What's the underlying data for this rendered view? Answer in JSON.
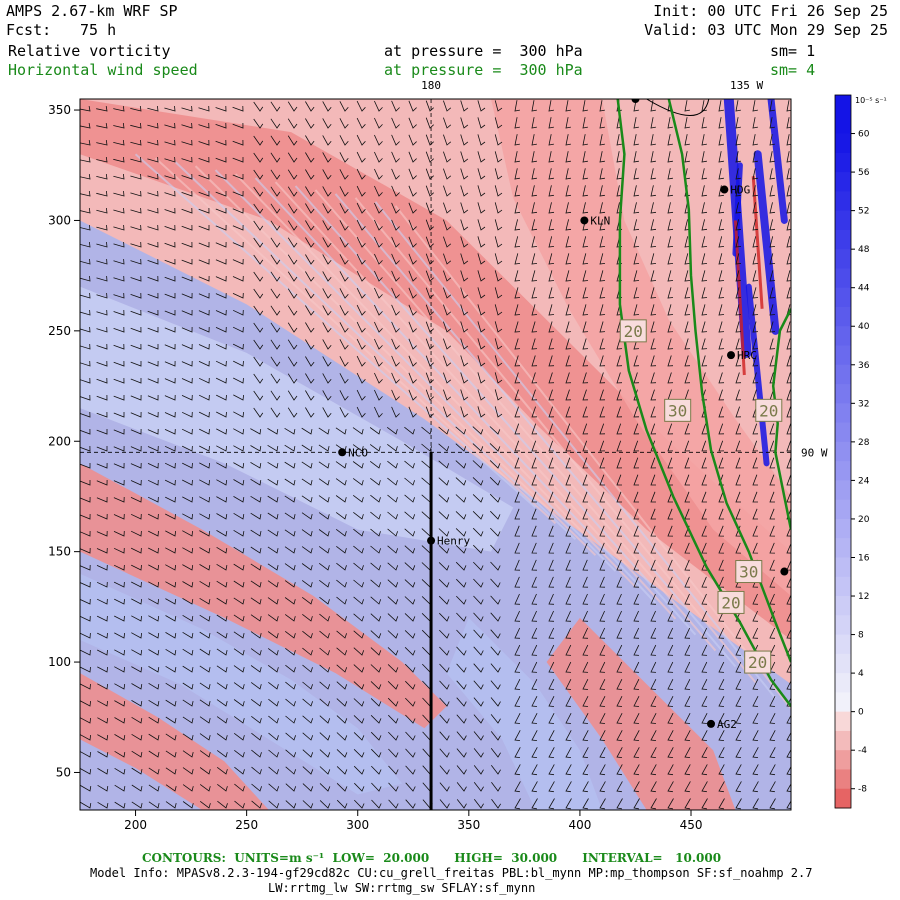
{
  "header": {
    "model": "AMPS 2.67-km WRF SP",
    "fcst_label": "Fcst:",
    "fcst_value": "75 h",
    "init": "Init: 00 UTC Fri 26 Sep 25",
    "valid": "Valid: 03 UTC Mon 29 Sep 25",
    "field1_name": "Relative vorticity",
    "field1_level": "at pressure =  300 hPa",
    "field1_sm": "sm= 1",
    "field2_name": "Horizontal wind speed",
    "field2_level": "at pressure =  300 hPa",
    "field2_sm": "sm= 4"
  },
  "colors": {
    "positive": "#1414e6",
    "negative": "#e65a5a",
    "contour": "#1a8a1a",
    "label_box": "#7a7a4a"
  },
  "chart_data": {
    "type": "heatmap",
    "title": "Relative vorticity / Horizontal wind speed",
    "xlim": [
      175,
      495
    ],
    "ylim": [
      33,
      355
    ],
    "x_ticks": [
      200,
      250,
      300,
      350,
      400,
      450
    ],
    "y_ticks": [
      50,
      100,
      150,
      200,
      250,
      300,
      350
    ],
    "grid": false,
    "colorbar": {
      "unit": "10⁻⁵ s⁻¹",
      "labels": [
        "60",
        "56",
        "52",
        "48",
        "44",
        "40",
        "36",
        "32",
        "28",
        "24",
        "20",
        "16",
        "12",
        "8",
        "4",
        "0",
        "-4",
        "-8"
      ],
      "max": 64,
      "min": -10
    },
    "stations": [
      {
        "name": "NCO",
        "x": 293,
        "y": 195
      },
      {
        "name": "Henry",
        "x": 333,
        "y": 155
      },
      {
        "name": "KLN",
        "x": 402,
        "y": 300
      },
      {
        "name": "HDG",
        "x": 465,
        "y": 314
      },
      {
        "name": "HRC",
        "x": 468,
        "y": 239
      },
      {
        "name": "AG2",
        "x": 459,
        "y": 72
      },
      {
        "name": "",
        "x": 425,
        "y": 355
      },
      {
        "name": "",
        "x": 492,
        "y": 141
      }
    ],
    "meridians": [
      {
        "label": "180",
        "x": 333
      },
      {
        "label": "135 W",
        "x": 475
      }
    ],
    "parallels": [
      {
        "label": "90 W",
        "y": 195
      }
    ],
    "cross_section": {
      "x": 333,
      "y_start": 33,
      "y_end": 195
    },
    "contours": [
      {
        "level": 20,
        "points": [
          [
            417,
            355
          ],
          [
            420,
            330
          ],
          [
            418,
            300
          ],
          [
            418,
            262
          ],
          [
            422,
            232
          ],
          [
            430,
            205
          ],
          [
            442,
            175
          ],
          [
            457,
            143
          ],
          [
            472,
            118
          ],
          [
            486,
            92
          ],
          [
            495,
            80
          ]
        ]
      },
      {
        "level": 30,
        "points": [
          [
            440,
            355
          ],
          [
            446,
            330
          ],
          [
            449,
            305
          ],
          [
            450,
            275
          ],
          [
            452,
            250
          ],
          [
            455,
            222
          ],
          [
            459,
            196
          ],
          [
            466,
            172
          ],
          [
            476,
            150
          ],
          [
            488,
            118
          ],
          [
            495,
            100
          ]
        ]
      },
      {
        "level": 20,
        "points": [
          [
            495,
            260
          ],
          [
            490,
            250
          ],
          [
            487,
            225
          ],
          [
            489,
            208
          ],
          [
            488,
            195
          ],
          [
            492,
            175
          ],
          [
            495,
            160
          ]
        ]
      }
    ],
    "contour_labels": [
      {
        "text": "20",
        "x": 424,
        "y": 250
      },
      {
        "text": "30",
        "x": 444,
        "y": 214
      },
      {
        "text": "20",
        "x": 485,
        "y": 214
      },
      {
        "text": "30",
        "x": 476,
        "y": 141
      },
      {
        "text": "20",
        "x": 468,
        "y": 127
      },
      {
        "text": "20",
        "x": 480,
        "y": 100
      }
    ]
  },
  "footer": {
    "contours_line": "CONTOURS:  UNITS=m s⁻¹  LOW=  20.000      HIGH=  30.000      INTERVAL=   10.000",
    "model_info": "Model Info: MPASv8.2.3-194-gf29cd82c CU:cu_grell_freitas PBL:bl_mynn MP:mp_thompson SF:sf_noahmp 2.7",
    "physics": "LW:rrtmg_lw SW:rrtmg_sw SFLAY:sf_mynn"
  }
}
